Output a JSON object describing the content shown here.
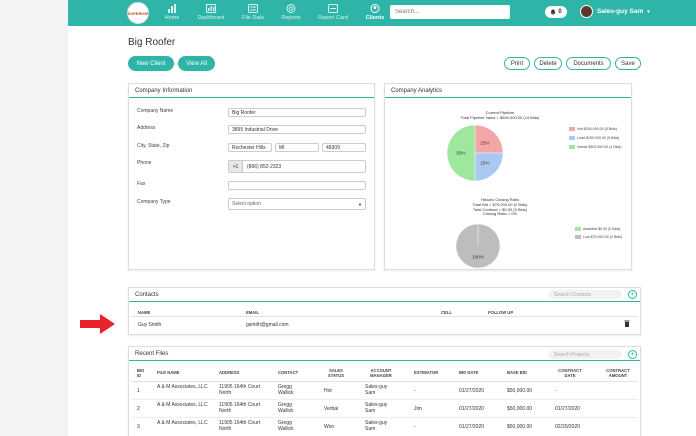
{
  "brand": {
    "logo_text": "SUPERIOR"
  },
  "nav": {
    "items": [
      {
        "label": "Home"
      },
      {
        "label": "Dashboard"
      },
      {
        "label": "File Data"
      },
      {
        "label": "Reports"
      },
      {
        "label": "Report Card"
      },
      {
        "label": "Clients"
      }
    ],
    "search_placeholder": "Search...",
    "notifications_count": "0",
    "user_name": "Sales-guy Sam"
  },
  "page": {
    "title": "Big Roofer",
    "buttons": {
      "new_client": "New Client",
      "view_all": "View All",
      "print": "Print",
      "delete": "Delete",
      "documents": "Documents",
      "save": "Save"
    }
  },
  "company_info": {
    "heading": "Company Information",
    "labels": {
      "name": "Company Name",
      "address": "Address",
      "city_state_zip": "City, State, Zip",
      "phone": "Phone",
      "fax": "Fax",
      "type": "Company Type"
    },
    "values": {
      "name": "Big Roofer",
      "address": "3895 Industrial Drive",
      "city": "Rochester Hills",
      "state": "MI",
      "zip": "48309",
      "phone_prefix": "+1",
      "phone": "(866) 852-2323",
      "fax": "",
      "type": "Select option"
    }
  },
  "analytics": {
    "heading": "Company Analytics",
    "pipeline": {
      "title": "Current Pipeline",
      "subtitle": "Total Pipeline Value = $600,000.00 (14 Bids)",
      "legend": [
        "Hot $150,000.00 (5 Bids)",
        "Lead $150,000.00 (5 Bids)",
        "Verbal $300,000.00 (4 Bids)"
      ],
      "slice_labels": [
        "25%",
        "25%",
        "50%"
      ]
    },
    "closing": {
      "title": "Historic Closing Ratio",
      "lines": [
        "Total Bid = $70,000.00 (2 Bids)",
        "Total Contract = $0.00 (0 Bids)",
        "Closing Ratio = 0%"
      ],
      "legend": [
        "Awarded $0.00 (0 Bids)",
        "Lost $70,000.00 (2 Bids)"
      ],
      "slice_label": "100%"
    }
  },
  "chart_data": [
    {
      "type": "pie",
      "title": "Current Pipeline",
      "categories": [
        "Hot",
        "Lead",
        "Verbal"
      ],
      "values": [
        150000,
        150000,
        300000
      ],
      "colors": [
        "#f4a6a6",
        "#a9c9f2",
        "#9ee89e"
      ]
    },
    {
      "type": "pie",
      "title": "Historic Closing Ratio",
      "categories": [
        "Awarded",
        "Lost"
      ],
      "values": [
        0,
        70000
      ],
      "colors": [
        "#9ee89e",
        "#bdbdbd"
      ]
    }
  ],
  "contacts": {
    "heading": "Contacts",
    "search_placeholder": "Search Contacts",
    "columns": [
      "NAME",
      "EMAIL",
      "CELL",
      "FOLLOW UP"
    ],
    "rows": [
      {
        "name": "Guy Smith",
        "email": "gsmith@gmail.com",
        "cell": "",
        "follow_up": ""
      }
    ]
  },
  "recent_files": {
    "heading": "Recent Files",
    "search_placeholder": "Search Projects",
    "columns": [
      "BID ID",
      "FILE NAME",
      "ADDRESS",
      "CONTACT",
      "SALES STATUS",
      "ACCOUNT MANAGER",
      "ESTIMATOR",
      "BID DATE",
      "BASE BID",
      "CONTRACT DATE",
      "CONTRACT AMOUNT"
    ],
    "rows": [
      {
        "id": "1",
        "file": "A & M Associates, LLC",
        "address": "11905 164th Court North",
        "contact": "Gregg Wallick",
        "status": "Hot",
        "manager": "Sales-guy Sam",
        "estimator": "-",
        "bid_date": "01/27/2020",
        "base_bid": "$50,000.00",
        "contract_date": "-",
        "contract_amount": ""
      },
      {
        "id": "2",
        "file": "A & M Associates, LLC",
        "address": "11905 164th Court North",
        "contact": "Gregg Wallick",
        "status": "Verbal",
        "manager": "Sales-guy Sam",
        "estimator": "Jim",
        "bid_date": "01/27/2020",
        "base_bid": "$50,000.00",
        "contract_date": "01/27/2020",
        "contract_amount": ""
      },
      {
        "id": "3",
        "file": "A & M Associates, LLC",
        "address": "11905 164th Court North",
        "contact": "Gregg Wallick",
        "status": "Won",
        "manager": "Sales-guy Sam",
        "estimator": "-",
        "bid_date": "01/27/2020",
        "base_bid": "$50,000.00",
        "contract_date": "02/20/2020",
        "contract_amount": ""
      }
    ]
  },
  "colors": {
    "accent": "#2fb5a8",
    "arrow": "#e8232a"
  }
}
